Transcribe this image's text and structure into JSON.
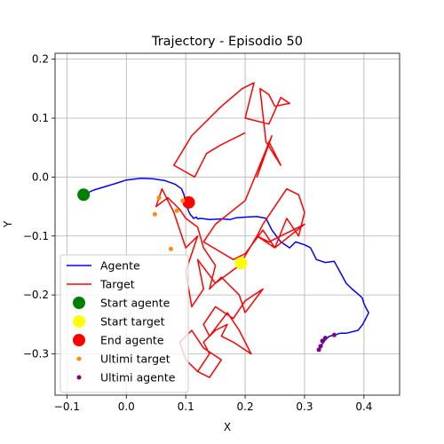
{
  "chart_data": {
    "type": "line",
    "title": "Trajectory - Episodio 50",
    "xlabel": "X",
    "ylabel": "Y",
    "xlim": [
      -0.12,
      0.46
    ],
    "ylim": [
      -0.37,
      0.21
    ],
    "xticks": [
      -0.1,
      0.0,
      0.1,
      0.2,
      0.3,
      0.4
    ],
    "xtick_labels": [
      "−0.1",
      "0.0",
      "0.1",
      "0.2",
      "0.3",
      "0.4"
    ],
    "yticks": [
      -0.3,
      -0.2,
      -0.1,
      0.0,
      0.1,
      0.2
    ],
    "ytick_labels": [
      "−0.3",
      "−0.2",
      "−0.1",
      "0.0",
      "0.1",
      "0.2"
    ],
    "grid": true,
    "legend_position": "lower-left",
    "colors": {
      "agente": "#0000ff",
      "target": "#ff0000",
      "start_agente": "#008000",
      "start_target": "#ffff00",
      "end_agente": "#ff0000",
      "ultimi_target": "#ff8c00",
      "ultimi_agente": "#800080"
    },
    "series": [
      {
        "name": "Agente",
        "kind": "line",
        "x": [
          -0.072,
          -0.055,
          -0.035,
          -0.015,
          0.0,
          0.025,
          0.045,
          0.065,
          0.082,
          0.093,
          0.097,
          0.1,
          0.105,
          0.108,
          0.11,
          0.113,
          0.118,
          0.12,
          0.125,
          0.14,
          0.16,
          0.175,
          0.185,
          0.2,
          0.22,
          0.235,
          0.245,
          0.26,
          0.275,
          0.285,
          0.3,
          0.31,
          0.32,
          0.335,
          0.35,
          0.362,
          0.37,
          0.38,
          0.392,
          0.397,
          0.4,
          0.405,
          0.408,
          0.403,
          0.398,
          0.39,
          0.37,
          0.36,
          0.35,
          0.342,
          0.336,
          0.33,
          0.325
        ],
        "y": [
          -0.03,
          -0.022,
          -0.016,
          -0.01,
          -0.005,
          -0.002,
          -0.003,
          -0.006,
          -0.012,
          -0.02,
          -0.03,
          -0.045,
          -0.058,
          -0.064,
          -0.066,
          -0.07,
          -0.068,
          -0.071,
          -0.07,
          -0.072,
          -0.071,
          -0.072,
          -0.069,
          -0.068,
          -0.067,
          -0.07,
          -0.09,
          -0.11,
          -0.12,
          -0.11,
          -0.115,
          -0.12,
          -0.14,
          -0.145,
          -0.143,
          -0.165,
          -0.18,
          -0.19,
          -0.2,
          -0.205,
          -0.215,
          -0.225,
          -0.23,
          -0.24,
          -0.25,
          -0.26,
          -0.265,
          -0.265,
          -0.268,
          -0.27,
          -0.275,
          -0.283,
          -0.293
        ]
      },
      {
        "name": "Target",
        "kind": "line",
        "x": [
          0.2,
          0.16,
          0.135,
          0.115,
          0.08,
          0.11,
          0.16,
          0.195,
          0.215,
          0.2,
          0.24,
          0.26,
          0.275,
          0.25,
          0.24,
          0.225,
          0.235,
          0.26,
          0.24,
          0.22,
          0.245,
          0.2,
          0.15,
          0.13,
          0.18,
          0.2,
          0.23,
          0.25,
          0.27,
          0.29,
          0.3,
          0.29,
          0.27,
          0.25,
          0.23,
          0.22,
          0.24,
          0.3,
          0.25,
          0.22,
          0.19,
          0.15,
          0.12,
          0.13,
          0.11,
          0.1,
          0.12,
          0.1,
          0.08,
          0.06,
          0.05,
          0.07,
          0.09,
          0.1,
          0.12,
          0.13,
          0.15,
          0.14,
          0.16,
          0.19,
          0.2,
          0.23,
          0.2,
          0.18,
          0.15,
          0.13,
          0.14,
          0.17,
          0.19,
          0.21,
          0.18,
          0.16,
          0.17,
          0.15,
          0.13,
          0.14,
          0.12,
          0.1,
          0.09,
          0.11,
          0.13,
          0.16,
          0.14,
          0.12,
          0.14
        ],
        "y": [
          0.075,
          0.055,
          0.04,
          0.0,
          0.02,
          0.07,
          0.12,
          0.15,
          0.16,
          0.1,
          0.09,
          0.135,
          0.125,
          0.12,
          0.14,
          0.15,
          0.06,
          0.02,
          0.06,
          0.0,
          0.07,
          -0.04,
          -0.08,
          -0.11,
          -0.14,
          -0.13,
          -0.09,
          -0.12,
          -0.07,
          -0.1,
          -0.06,
          -0.03,
          -0.02,
          -0.05,
          -0.08,
          -0.1,
          -0.11,
          -0.08,
          -0.12,
          -0.1,
          -0.15,
          -0.18,
          -0.14,
          -0.19,
          -0.22,
          -0.16,
          -0.1,
          -0.12,
          -0.06,
          -0.02,
          -0.05,
          -0.035,
          -0.055,
          -0.07,
          -0.085,
          -0.12,
          -0.15,
          -0.19,
          -0.17,
          -0.2,
          -0.23,
          -0.19,
          -0.21,
          -0.24,
          -0.22,
          -0.25,
          -0.27,
          -0.23,
          -0.26,
          -0.3,
          -0.28,
          -0.27,
          -0.25,
          -0.26,
          -0.28,
          -0.3,
          -0.33,
          -0.31,
          -0.28,
          -0.26,
          -0.29,
          -0.31,
          -0.34,
          -0.33,
          -0.3
        ]
      },
      {
        "name": "Start agente",
        "kind": "marker",
        "x": [
          -0.072
        ],
        "y": [
          -0.03
        ]
      },
      {
        "name": "Start target",
        "kind": "marker",
        "x": [
          0.193
        ],
        "y": [
          -0.146
        ]
      },
      {
        "name": "End agente",
        "kind": "marker",
        "x": [
          0.105
        ],
        "y": [
          -0.043
        ]
      },
      {
        "name": "Ultimi target",
        "kind": "scatter",
        "x": [
          0.055,
          0.048,
          0.085,
          0.075,
          0.095
        ],
        "y": [
          -0.035,
          -0.063,
          -0.057,
          -0.122,
          -0.04
        ]
      },
      {
        "name": "Ultimi agente",
        "kind": "scatter",
        "x": [
          0.335,
          0.35,
          0.33,
          0.327,
          0.324
        ],
        "y": [
          -0.273,
          -0.268,
          -0.278,
          -0.287,
          -0.293
        ]
      }
    ]
  }
}
